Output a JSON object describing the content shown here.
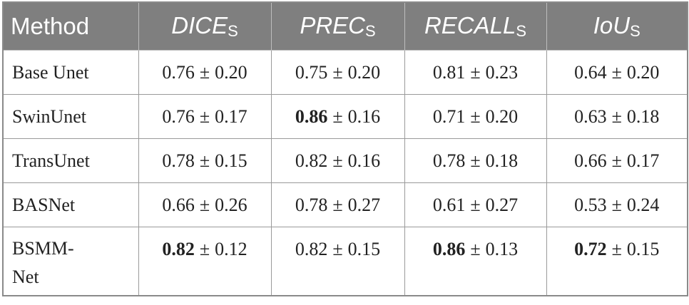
{
  "table": {
    "header": [
      "Method",
      {
        "text": "DICE",
        "sub": "S"
      },
      {
        "text": "PREC",
        "sub": "S"
      },
      {
        "text": "RECALL",
        "sub": "S"
      },
      {
        "text": "IoU",
        "sub": "S"
      }
    ],
    "pm": "±",
    "rows": [
      {
        "method": "Base Unet",
        "cells": [
          {
            "mean": "0.76",
            "sd": "0.20"
          },
          {
            "mean": "0.75",
            "sd": "0.20"
          },
          {
            "mean": "0.81",
            "sd": "0.23"
          },
          {
            "mean": "0.64",
            "sd": "0.20"
          }
        ]
      },
      {
        "method": "SwinUnet",
        "cells": [
          {
            "mean": "0.76",
            "sd": "0.17"
          },
          {
            "mean": "0.86",
            "sd": "0.16",
            "bold": true
          },
          {
            "mean": "0.71",
            "sd": "0.20"
          },
          {
            "mean": "0.63",
            "sd": "0.18"
          }
        ]
      },
      {
        "method": "TransUnet",
        "cells": [
          {
            "mean": "0.78",
            "sd": "0.15"
          },
          {
            "mean": "0.82",
            "sd": "0.16"
          },
          {
            "mean": "0.78",
            "sd": "0.18"
          },
          {
            "mean": "0.66",
            "sd": "0.17"
          }
        ]
      },
      {
        "method": "BASNet",
        "cells": [
          {
            "mean": "0.66",
            "sd": "0.26"
          },
          {
            "mean": "0.78",
            "sd": "0.27"
          },
          {
            "mean": "0.61",
            "sd": "0.27"
          },
          {
            "mean": "0.53",
            "sd": "0.24"
          }
        ]
      },
      {
        "method": "BSMM-Net",
        "cells": [
          {
            "mean": "0.82",
            "sd": "0.12",
            "bold": true
          },
          {
            "mean": "0.82",
            "sd": "0.15"
          },
          {
            "mean": "0.86",
            "sd": "0.13",
            "bold": true
          },
          {
            "mean": "0.72",
            "sd": "0.15",
            "bold": true
          }
        ]
      }
    ]
  }
}
